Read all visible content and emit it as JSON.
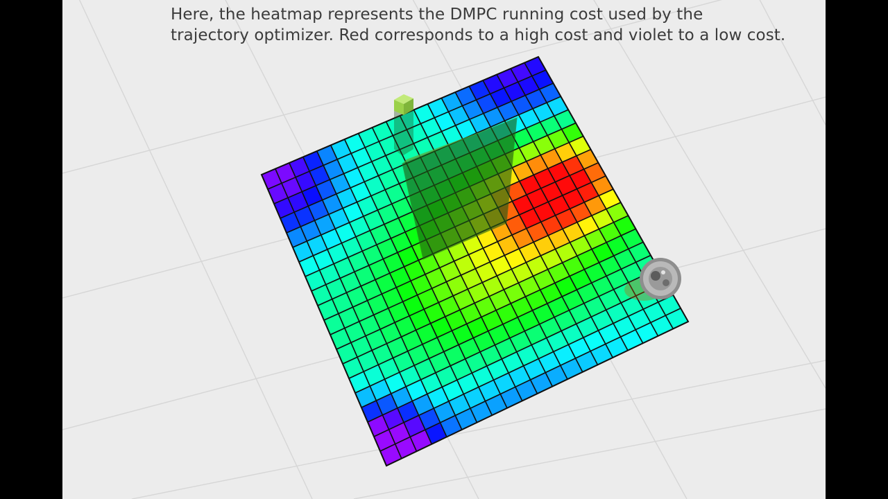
{
  "caption": {
    "line1": "Here, the heatmap represents the DMPC running cost used by the",
    "line2": "trajectory optimizer. Red corresponds to a high cost and violet to a low cost."
  },
  "heatmap": {
    "rows": 20,
    "cols": 20,
    "high_cost_color": "#ff1a1a",
    "low_cost_color": "#b000ff",
    "legend": {
      "high": "Red",
      "low": "violet"
    }
  },
  "colors": {
    "background": "#ececec",
    "floor_grid": "#d6d6d6",
    "letterbox": "#000000",
    "obstacle": "#2f6b1c",
    "marker": "#9bd14a",
    "robot": "#8e8e8e"
  },
  "icons": {
    "robot": "robot-icon",
    "obstacle": "wall-obstacle",
    "marker": "goal-marker"
  }
}
